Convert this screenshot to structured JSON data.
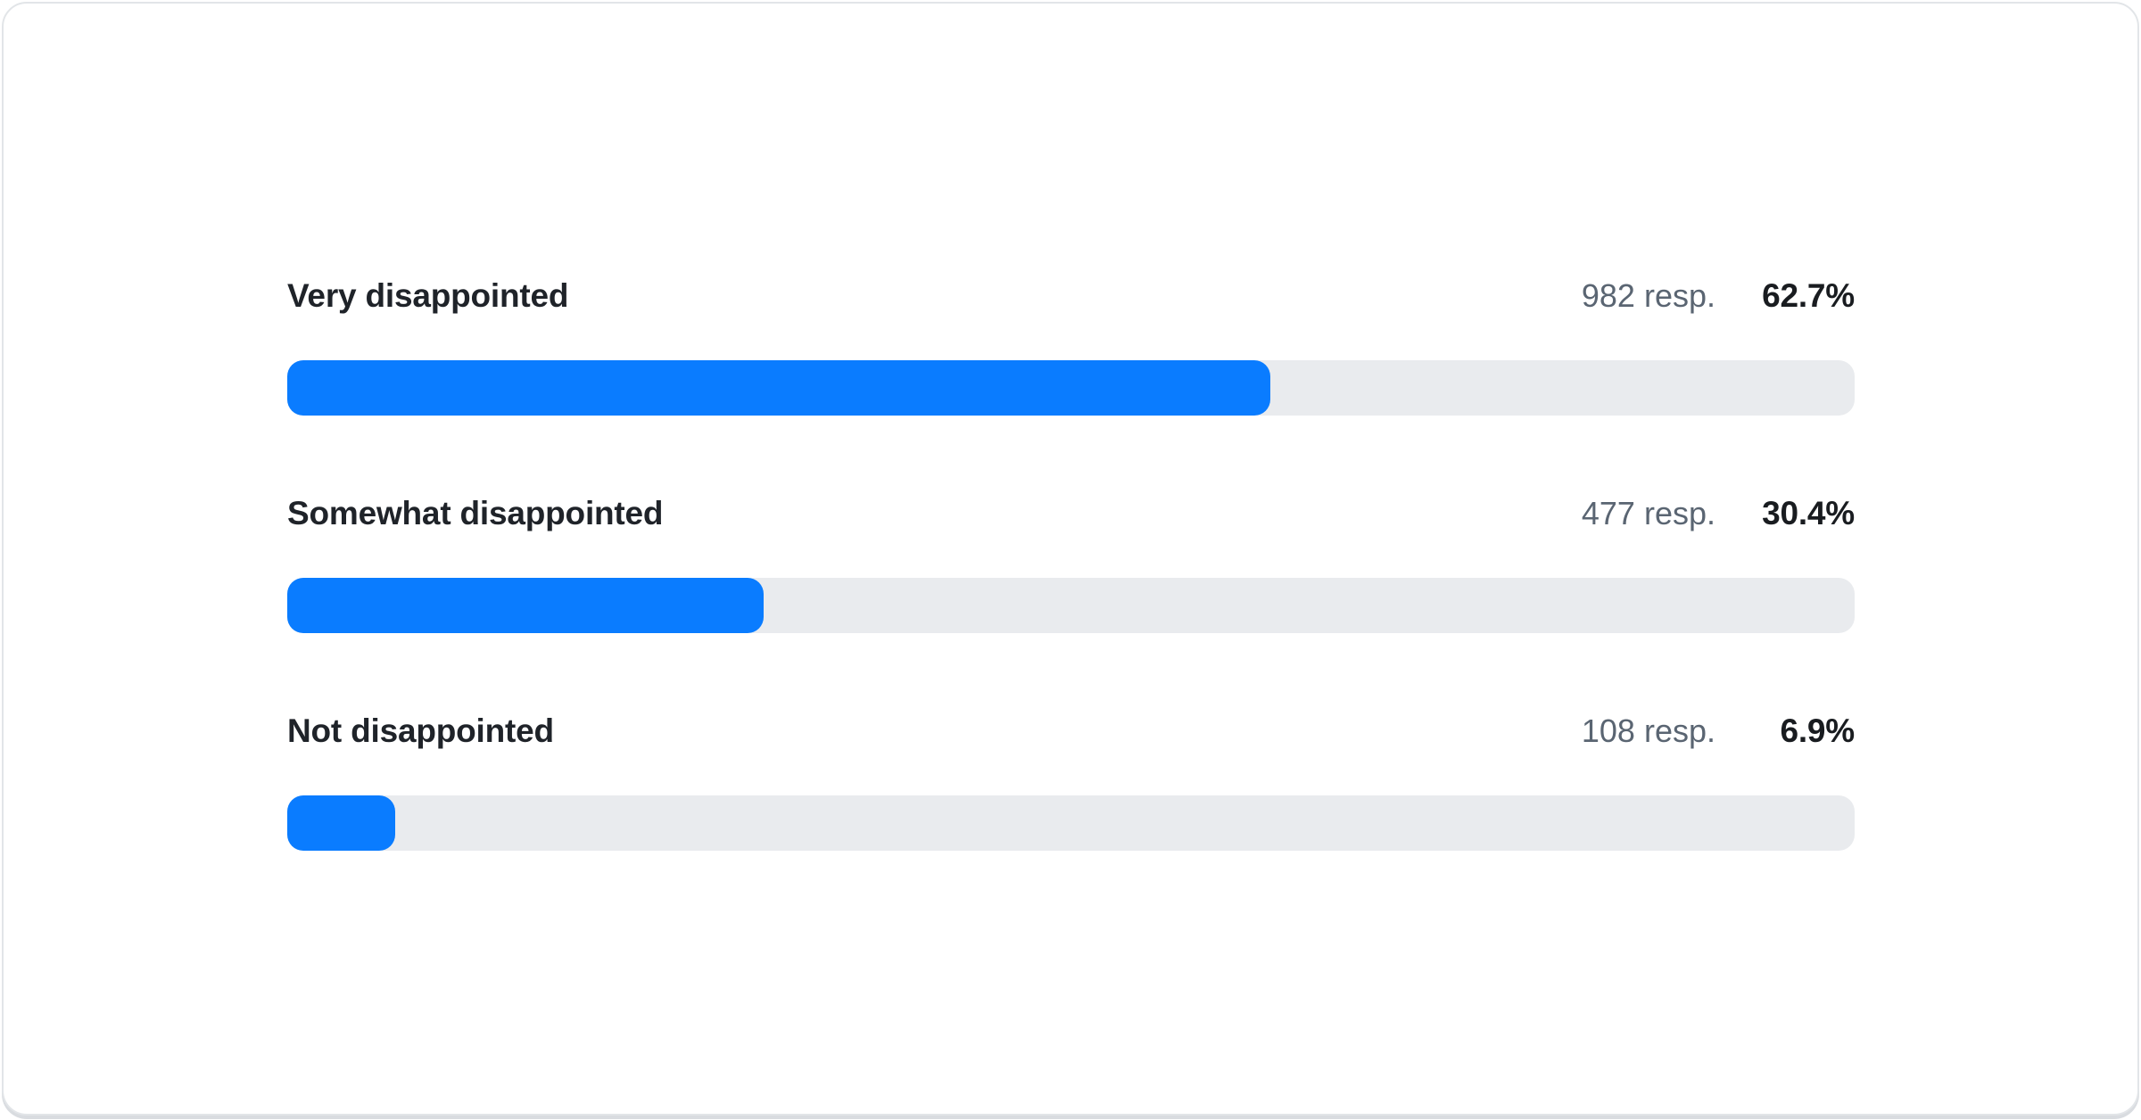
{
  "card": {
    "rows": [
      {
        "label": "Very disappointed",
        "responses_label": "982 resp.",
        "percent_label": "62.7%",
        "percent_value": 62.7
      },
      {
        "label": "Somewhat disappointed",
        "responses_label": "477 resp.",
        "percent_label": "30.4%",
        "percent_value": 30.4
      },
      {
        "label": "Not disappointed",
        "responses_label": "108 resp.",
        "percent_label": "6.9%",
        "percent_value": 6.9
      }
    ],
    "colors": {
      "bar_fill": "#0a7cff",
      "bar_track": "#e9ebee",
      "label_text": "#1f2329",
      "responses_text": "#5a6572",
      "percent_text": "#191c20",
      "card_border": "#e2e5e8",
      "card_shadow": "#d9dce0"
    }
  },
  "chart_data": {
    "type": "bar",
    "orientation": "horizontal",
    "title": "",
    "categories": [
      "Very disappointed",
      "Somewhat disappointed",
      "Not disappointed"
    ],
    "series": [
      {
        "name": "percent_of_responses",
        "values": [
          62.7,
          30.4,
          6.9
        ],
        "suffix": "%"
      },
      {
        "name": "response_counts",
        "values": [
          982,
          477,
          108
        ],
        "suffix": " resp."
      }
    ],
    "xlim": [
      0,
      100
    ],
    "grid": false,
    "legend": false,
    "value_labels_position": "right-of-row-header"
  }
}
